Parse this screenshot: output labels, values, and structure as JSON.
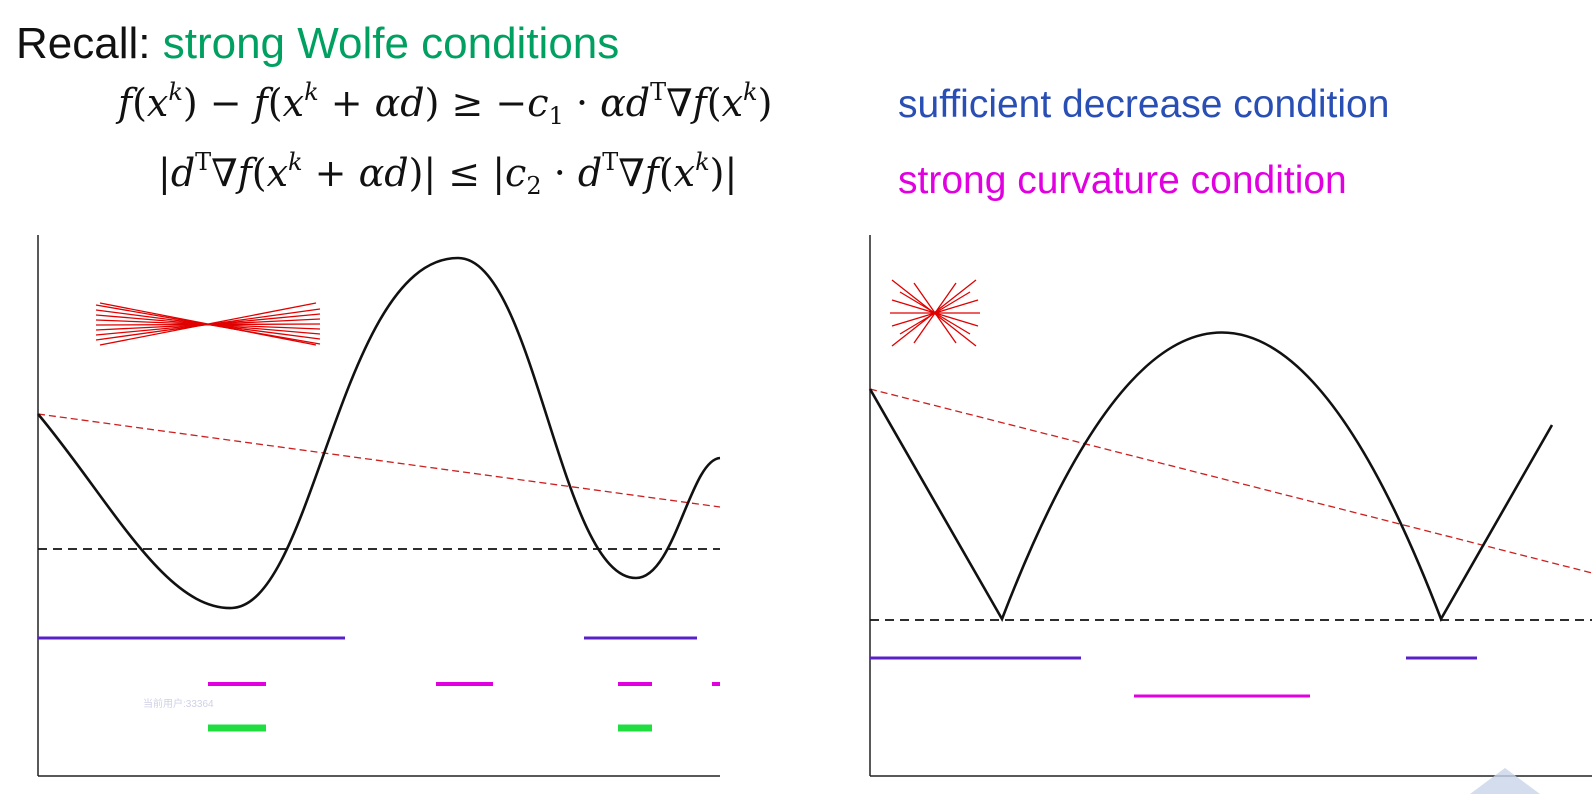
{
  "title": {
    "prefix": "Recall: ",
    "highlight": "strong Wolfe conditions"
  },
  "conditions": {
    "sufficient_decrease": {
      "label": "sufficient decrease condition",
      "color": "#2a4fb4"
    },
    "strong_curvature": {
      "label": "strong curvature condition",
      "color": "#e000e0"
    }
  },
  "colors": {
    "curve": "#111111",
    "armijo_line": "#cc2020",
    "slope_fan": "#e00000",
    "interval_sufficient": "#5a20c8",
    "interval_curvature": "#e000e0",
    "interval_both": "#20dd40"
  },
  "watermark": "当前用户:33364"
}
